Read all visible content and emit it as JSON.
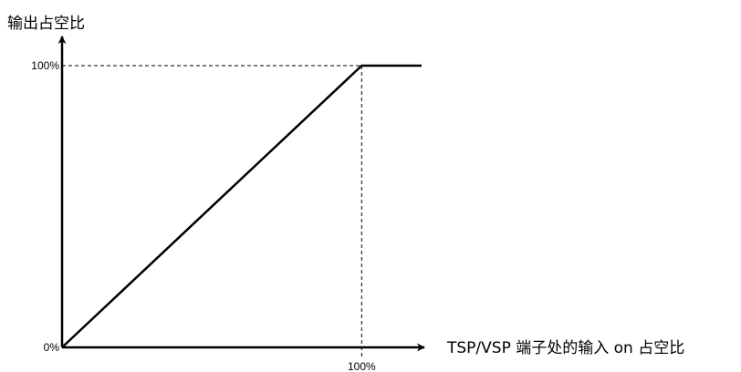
{
  "chart_data": {
    "type": "line",
    "title": "",
    "ylabel": "输出占空比",
    "xlabel": "TSP/VSP 端子处的输入 on 占空比",
    "x_unit": "%",
    "y_unit": "%",
    "xlim": [
      0,
      120
    ],
    "ylim": [
      0,
      100
    ],
    "grid": false,
    "legend": "none",
    "y_ticks": [
      {
        "value": 0,
        "label": "0%"
      },
      {
        "value": 100,
        "label": "100%"
      }
    ],
    "x_ticks": [
      {
        "value": 100,
        "label": "100%"
      }
    ],
    "reference_lines": [
      {
        "orientation": "horizontal",
        "value": 100,
        "style": "dashed"
      },
      {
        "orientation": "vertical",
        "value": 100,
        "style": "dashed"
      }
    ],
    "series": [
      {
        "points": [
          {
            "x": 0,
            "y": 0
          },
          {
            "x": 100,
            "y": 100
          },
          {
            "x": 120,
            "y": 100
          }
        ]
      }
    ],
    "colors": {
      "line": "#000000",
      "axis": "#000000",
      "reference": "#000000"
    }
  }
}
